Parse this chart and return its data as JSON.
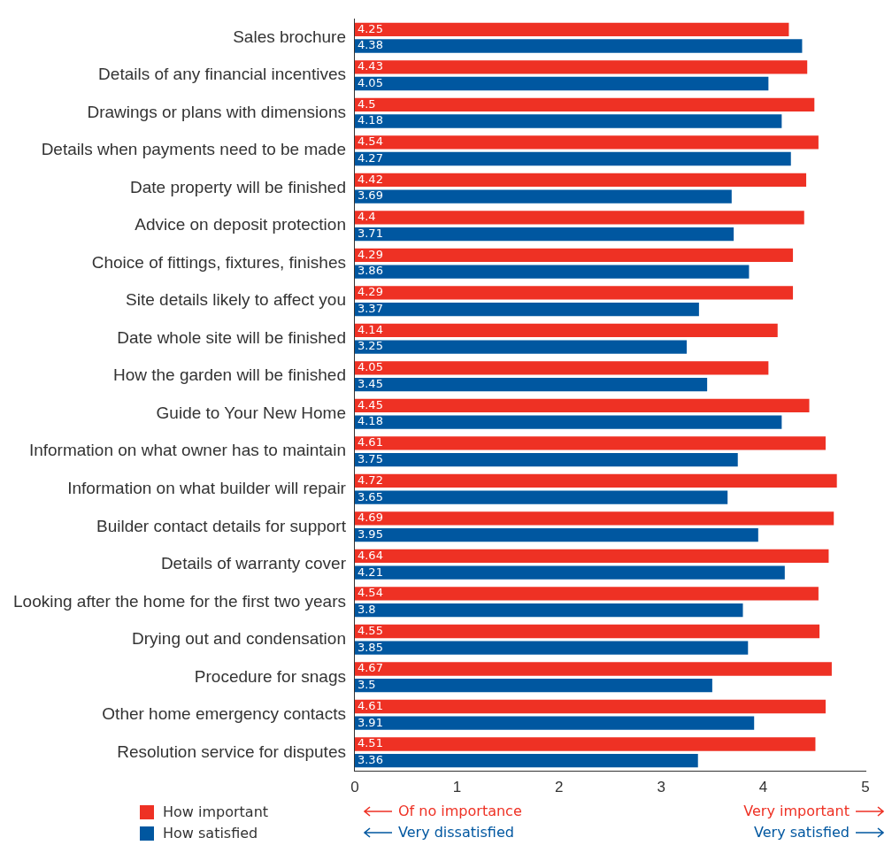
{
  "chart_data": {
    "type": "bar",
    "orientation": "horizontal",
    "categories": [
      "Sales brochure",
      "Details of any financial incentives",
      "Drawings or plans with dimensions",
      "Details when payments need to be made",
      "Date property will be finished",
      "Advice on deposit protection",
      "Choice of fittings, fixtures, finishes",
      "Site details likely to affect you",
      "Date whole site will be finished",
      "How the garden will be finished",
      "Guide to Your New Home",
      "Information on what owner has to maintain",
      "Information on what builder will repair",
      "Builder contact details for support",
      "Details of warranty cover",
      "Looking after the home for the first two years",
      "Drying out and condensation",
      "Procedure for snags",
      "Other home emergency contacts",
      "Resolution service for disputes"
    ],
    "series": [
      {
        "name": "How important",
        "color": "#ee3124",
        "values": [
          4.25,
          4.43,
          4.5,
          4.54,
          4.42,
          4.4,
          4.29,
          4.29,
          4.14,
          4.05,
          4.45,
          4.61,
          4.72,
          4.69,
          4.64,
          4.54,
          4.55,
          4.67,
          4.61,
          4.51
        ]
      },
      {
        "name": "How satisfied",
        "color": "#0057a0",
        "values": [
          4.38,
          4.05,
          4.18,
          4.27,
          3.69,
          3.71,
          3.86,
          3.37,
          3.25,
          3.45,
          4.18,
          3.75,
          3.65,
          3.95,
          4.21,
          3.8,
          3.85,
          3.5,
          3.91,
          3.36
        ]
      }
    ],
    "xlim": [
      0,
      5
    ],
    "xticks": [
      0,
      1,
      2,
      3,
      4,
      5
    ],
    "data_labels": true,
    "grid": false,
    "legend": "bottom left",
    "annotations": [
      "Of no importance",
      "Very important",
      "Very dissatisfied",
      "Very satisfied"
    ]
  }
}
